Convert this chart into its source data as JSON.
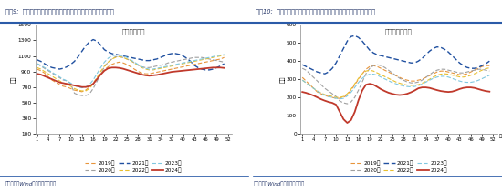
{
  "chart1_title": "钢材表需合计",
  "chart2_title": "螺纹钢表观需求",
  "fig_title1": "图表9:  近半月钢材表需均值环比续降，但降幅小于近年同期均值",
  "fig_title2": "图表10:  近半月螺纹钢表需均值环比再度回落，降幅小于近年同期均值",
  "ylabel": "万吨",
  "source": "资料来源：Wind，国盛证券研究所",
  "x_tick_positions": [
    0,
    3,
    6,
    9,
    12,
    15,
    18,
    21,
    24,
    27,
    30,
    33,
    36,
    39,
    42,
    45,
    48,
    51
  ],
  "x_tick_labels": [
    "1",
    "4",
    "7",
    "10",
    "13",
    "16",
    "19",
    "22",
    "25",
    "28",
    "31",
    "34",
    "37",
    "40",
    "43",
    "46",
    "49",
    "52"
  ],
  "chart1_ylim": [
    100,
    1500
  ],
  "chart1_yticks": [
    100,
    300,
    500,
    700,
    900,
    1100,
    1300,
    1500
  ],
  "chart2_ylim": [
    0,
    600
  ],
  "chart2_yticks": [
    0,
    100,
    200,
    300,
    400,
    500,
    600
  ],
  "colors": {
    "2019": "#E8943A",
    "2020": "#A0A0A0",
    "2021": "#2050A0",
    "2022": "#E8C030",
    "2023": "#80C8E0",
    "2024": "#C0392B"
  },
  "lws": {
    "2019": 0.8,
    "2020": 0.8,
    "2021": 1.0,
    "2022": 0.8,
    "2023": 0.8,
    "2024": 1.3
  },
  "styles": {
    "2019": "--",
    "2020": "--",
    "2021": "--",
    "2022": "--",
    "2023": "--",
    "2024": "-"
  },
  "header_color": "#C8D8F0",
  "bg_color": "#FFFFFF",
  "chart1": {
    "2019": [
      930,
      910,
      880,
      830,
      790,
      760,
      730,
      710,
      700,
      680,
      660,
      650,
      640,
      660,
      700,
      750,
      810,
      870,
      920,
      960,
      990,
      1010,
      1020,
      1010,
      990,
      960,
      930,
      900,
      880,
      870,
      870,
      880,
      890,
      900,
      910,
      920,
      930,
      940,
      950,
      960,
      970,
      980,
      990,
      1000,
      1010,
      1020,
      1030,
      1040,
      1050,
      1060,
      1080
    ],
    "2020": [
      1000,
      970,
      940,
      910,
      880,
      850,
      820,
      790,
      780,
      740,
      620,
      600,
      590,
      590,
      610,
      680,
      770,
      870,
      960,
      1020,
      1060,
      1090,
      1090,
      1080,
      1060,
      1040,
      1010,
      980,
      960,
      950,
      950,
      960,
      970,
      980,
      990,
      1010,
      1020,
      1030,
      1040,
      1050,
      1060,
      1070,
      1080,
      1080,
      1080,
      1070,
      1060,
      1050,
      1040,
      1030,
      1020
    ],
    "2021": [
      1050,
      1030,
      1000,
      970,
      950,
      940,
      930,
      940,
      960,
      990,
      1030,
      1090,
      1160,
      1230,
      1280,
      1310,
      1290,
      1240,
      1180,
      1150,
      1130,
      1120,
      1110,
      1100,
      1090,
      1080,
      1070,
      1060,
      1050,
      1040,
      1040,
      1050,
      1060,
      1080,
      1100,
      1120,
      1130,
      1130,
      1120,
      1100,
      1070,
      1030,
      980,
      950,
      930,
      920,
      920,
      930,
      950,
      970,
      1000
    ],
    "2022": [
      950,
      930,
      900,
      870,
      840,
      810,
      780,
      750,
      740,
      710,
      680,
      660,
      650,
      650,
      680,
      740,
      820,
      900,
      970,
      1020,
      1060,
      1080,
      1090,
      1080,
      1060,
      1040,
      1010,
      980,
      950,
      930,
      920,
      920,
      930,
      940,
      950,
      960,
      970,
      980,
      990,
      1000,
      1010,
      1020,
      1030,
      1040,
      1050,
      1060,
      1070,
      1080,
      1090,
      1100,
      1110
    ],
    "2023": [
      1000,
      980,
      950,
      920,
      890,
      860,
      830,
      800,
      780,
      750,
      720,
      700,
      690,
      700,
      730,
      790,
      870,
      950,
      1020,
      1070,
      1100,
      1110,
      1110,
      1100,
      1080,
      1050,
      1020,
      990,
      960,
      940,
      930,
      930,
      940,
      950,
      960,
      970,
      980,
      990,
      1000,
      1010,
      1020,
      1030,
      1040,
      1050,
      1060,
      1070,
      1080,
      1090,
      1100,
      1110,
      1120
    ],
    "2024": [
      870,
      860,
      840,
      820,
      800,
      780,
      760,
      750,
      740,
      730,
      720,
      710,
      700,
      700,
      710,
      740,
      800,
      860,
      910,
      940,
      950,
      950,
      945,
      935,
      920,
      905,
      890,
      875,
      860,
      850,
      845,
      850,
      855,
      865,
      875,
      885,
      895,
      900,
      905,
      910,
      915,
      920,
      925,
      930,
      935,
      940,
      945,
      950,
      950,
      950,
      945
    ]
  },
  "chart2": {
    "2019": [
      310,
      290,
      270,
      250,
      230,
      220,
      210,
      205,
      200,
      195,
      195,
      200,
      215,
      240,
      270,
      300,
      330,
      355,
      370,
      375,
      370,
      360,
      350,
      340,
      330,
      320,
      310,
      300,
      295,
      290,
      290,
      295,
      300,
      310,
      320,
      330,
      340,
      345,
      345,
      340,
      335,
      330,
      325,
      325,
      330,
      340,
      350,
      360,
      370,
      375,
      375
    ],
    "2020": [
      360,
      350,
      330,
      310,
      290,
      270,
      250,
      235,
      220,
      205,
      180,
      170,
      165,
      175,
      200,
      240,
      285,
      330,
      360,
      375,
      380,
      375,
      365,
      350,
      335,
      320,
      305,
      295,
      285,
      280,
      280,
      285,
      295,
      310,
      325,
      340,
      350,
      355,
      355,
      350,
      345,
      340,
      335,
      335,
      340,
      345,
      350,
      355,
      355,
      350,
      345
    ],
    "2021": [
      380,
      370,
      360,
      350,
      340,
      335,
      330,
      340,
      360,
      390,
      430,
      470,
      510,
      535,
      540,
      530,
      510,
      485,
      460,
      445,
      435,
      430,
      425,
      420,
      415,
      410,
      405,
      400,
      395,
      390,
      390,
      400,
      415,
      435,
      455,
      470,
      478,
      475,
      465,
      450,
      430,
      410,
      390,
      375,
      365,
      360,
      360,
      365,
      375,
      385,
      400
    ],
    "2022": [
      295,
      280,
      265,
      250,
      235,
      225,
      215,
      210,
      205,
      200,
      200,
      205,
      220,
      245,
      275,
      305,
      330,
      345,
      350,
      345,
      335,
      325,
      315,
      305,
      295,
      285,
      278,
      272,
      268,
      266,
      267,
      270,
      278,
      288,
      300,
      312,
      322,
      328,
      330,
      328,
      323,
      318,
      313,
      312,
      315,
      322,
      330,
      340,
      350,
      358,
      363
    ],
    "2023": [
      295,
      280,
      265,
      250,
      235,
      222,
      212,
      205,
      200,
      195,
      192,
      195,
      208,
      228,
      255,
      282,
      305,
      320,
      328,
      328,
      322,
      312,
      302,
      292,
      282,
      275,
      268,
      263,
      260,
      258,
      260,
      265,
      274,
      284,
      295,
      305,
      312,
      316,
      316,
      312,
      305,
      297,
      290,
      285,
      283,
      283,
      287,
      294,
      303,
      313,
      322
    ],
    "2024": [
      230,
      225,
      218,
      210,
      200,
      190,
      182,
      175,
      170,
      160,
      120,
      80,
      60,
      75,
      120,
      185,
      238,
      270,
      275,
      270,
      258,
      245,
      235,
      226,
      220,
      215,
      213,
      215,
      220,
      228,
      238,
      250,
      255,
      255,
      252,
      246,
      240,
      235,
      232,
      230,
      232,
      238,
      246,
      252,
      255,
      255,
      252,
      246,
      240,
      235,
      232
    ]
  },
  "legend_order": [
    [
      "2019",
      "2021",
      "2023"
    ],
    [
      "2020",
      "2022",
      "2024"
    ]
  ],
  "legend_labels": {
    "2019": "2019年",
    "2020": "2020年",
    "2021": "2021年",
    "2022": "2022年",
    "2023": "2023年",
    "2024": "2024年"
  }
}
